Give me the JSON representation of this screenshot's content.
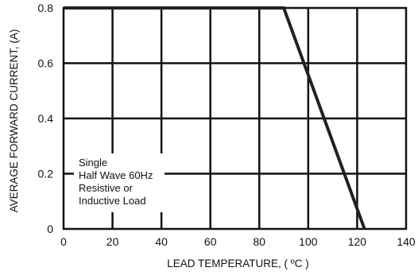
{
  "chart_data": {
    "type": "line",
    "title": "",
    "xlabel": "LEAD TEMPERATURE, ( ºC )",
    "ylabel": "AVERAGE FORWARD CURRENT, (A)",
    "xlim": [
      0,
      140
    ],
    "ylim": [
      0,
      0.8
    ],
    "x_ticks": [
      "0",
      "20",
      "40",
      "60",
      "80",
      "100",
      "120",
      "140"
    ],
    "y_ticks": [
      "0",
      "0.2",
      "0.4",
      "0.6",
      "0.8"
    ],
    "grid": true,
    "series": [
      {
        "x": [
          0,
          90,
          123
        ],
        "y": [
          0.8,
          0.8,
          0
        ]
      }
    ],
    "annotations": [
      "Single",
      "Half Wave 60Hz",
      "Resistive or",
      "Inductive Load"
    ],
    "colors": {
      "line": "#222222",
      "grid": "#111111"
    }
  }
}
